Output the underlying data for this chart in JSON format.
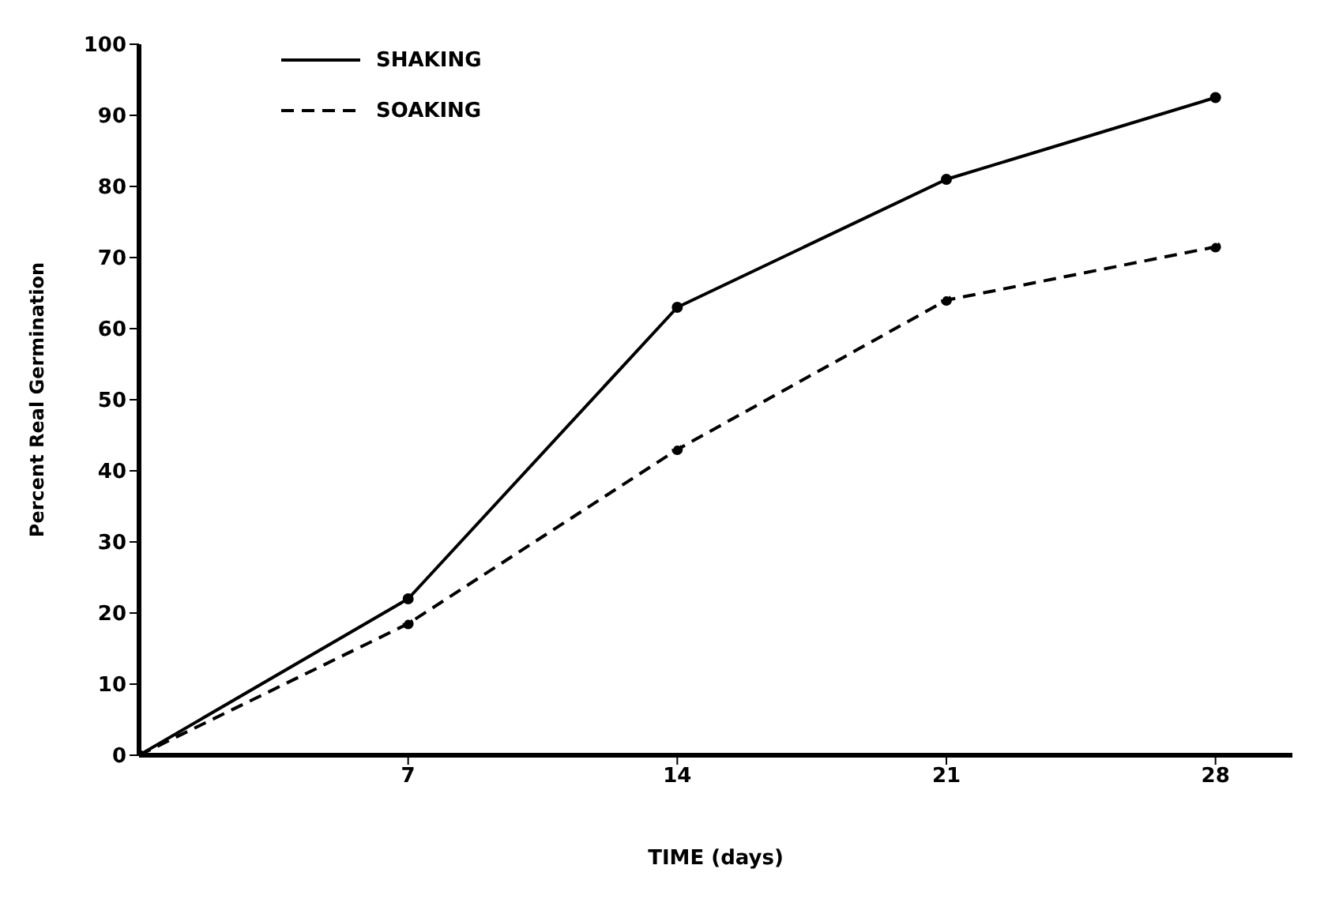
{
  "chart_data": {
    "type": "line",
    "xlabel": "TIME (days)",
    "ylabel": "Percent Real Germination",
    "x": [
      0,
      7,
      14,
      21,
      28
    ],
    "series": [
      {
        "name": "SHAKING",
        "color": "#000000",
        "values": [
          0,
          22,
          63,
          81,
          92.5
        ],
        "line_style": "solid"
      },
      {
        "name": "SOAKING",
        "color": "#000000",
        "values": [
          0,
          18.5,
          43,
          64,
          71.5
        ],
        "line_style": "dashed"
      }
    ],
    "xlim": [
      0,
      30
    ],
    "xticks": [
      7,
      14,
      21,
      28
    ],
    "ylim": [
      0,
      100
    ],
    "yticks": [
      0,
      10,
      20,
      30,
      40,
      50,
      60,
      70,
      80,
      90,
      100
    ],
    "grid": false,
    "legend": "top left",
    "marker": "circle"
  }
}
